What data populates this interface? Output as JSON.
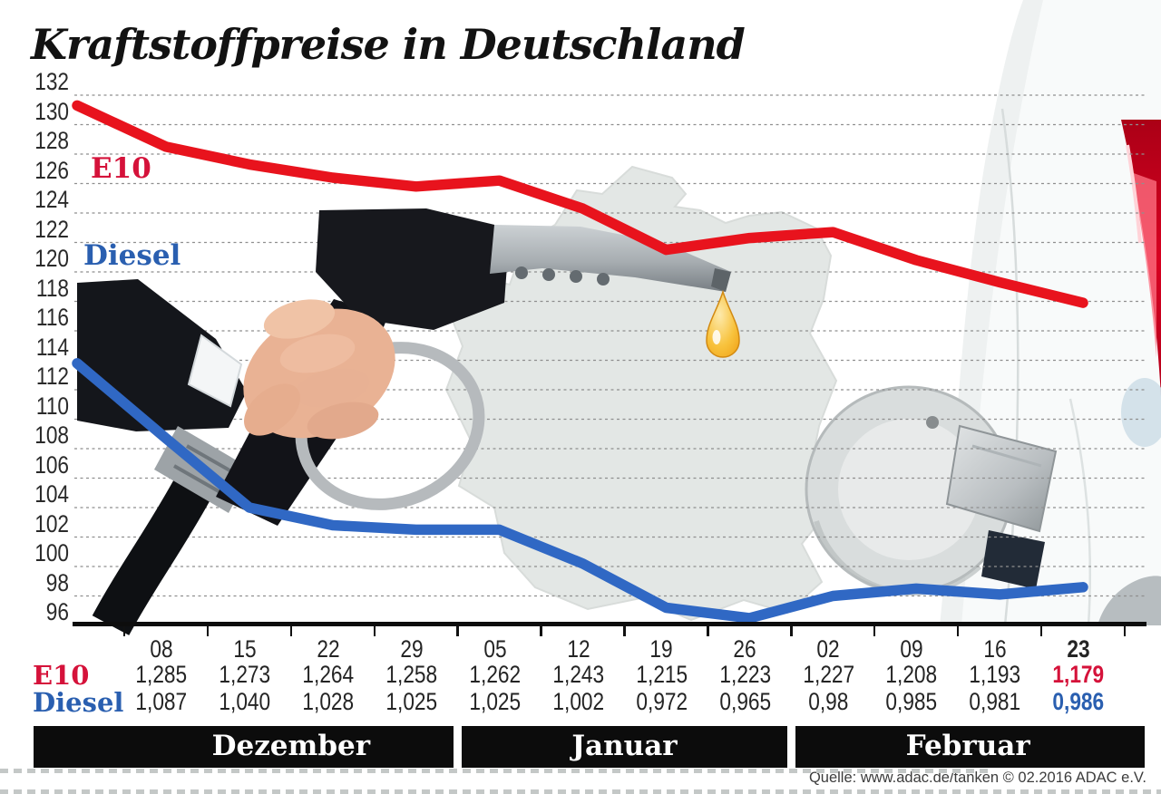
{
  "source": "Quelle: www.adac.de/tanken   © 02.2016  ADAC e.V.",
  "chart_data": {
    "type": "line",
    "title": "Kraftstoffpreise in Deutschland",
    "xlabel": "",
    "ylabel": "",
    "ylim": [
      96,
      132
    ],
    "ytick_step": 2,
    "grid": true,
    "legend_position": "inline-left",
    "x_labels": [
      "08",
      "15",
      "22",
      "29",
      "05",
      "12",
      "19",
      "26",
      "02",
      "09",
      "16",
      "23"
    ],
    "months": [
      {
        "label": "Dezember",
        "from": 0,
        "to": 4
      },
      {
        "label": "Januar",
        "from": 4,
        "to": 8
      },
      {
        "label": "Februar",
        "from": 8,
        "to": 12
      }
    ],
    "series": [
      {
        "name": "E10",
        "color": "#e8131d",
        "label_color": "#d5123a",
        "edge_start_cents": 131.3,
        "values_cents": [
          128.5,
          127.3,
          126.4,
          125.8,
          126.2,
          124.3,
          121.5,
          122.3,
          122.7,
          120.8,
          119.3,
          117.9
        ],
        "display": [
          "1,285",
          "1,273",
          "1,264",
          "1,258",
          "1,262",
          "1,243",
          "1,215",
          "1,223",
          "1,227",
          "1,208",
          "1,193",
          "1,179"
        ]
      },
      {
        "name": "Diesel",
        "color": "#3068c4",
        "label_color": "#2a5fb0",
        "edge_start_cents": 113.8,
        "values_cents": [
          108.7,
          104.0,
          102.8,
          102.5,
          102.5,
          100.2,
          97.2,
          96.5,
          98.0,
          98.5,
          98.1,
          98.6
        ],
        "display": [
          "1,087",
          "1,040",
          "1,028",
          "1,025",
          "1,025",
          "1,002",
          "0,972",
          "0,965",
          "0,98",
          "0,985",
          "0,981",
          "0,986"
        ]
      }
    ]
  }
}
